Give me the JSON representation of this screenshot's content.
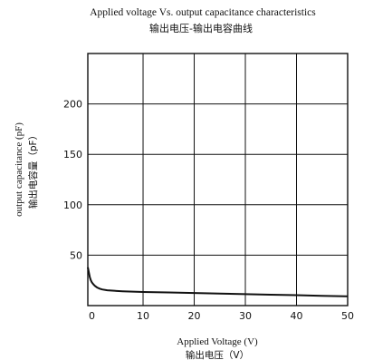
{
  "chart_data": {
    "type": "line",
    "title": "Applied voltage Vs. output capacitance characteristics",
    "subtitle": "输出电压-输出电容曲线",
    "xlabel": "Applied Voltage (V)",
    "xlabel_cn": "输出电压（V）",
    "ylabel": "output capacitance (pF)",
    "ylabel_cn": "输出电容量（pF）",
    "xlim": [
      -0.8,
      50
    ],
    "ylim": [
      0,
      250
    ],
    "x_ticks": [
      0,
      10,
      20,
      30,
      40,
      50
    ],
    "x_tick_labels": [
      "0",
      "10",
      "20",
      "30",
      "40",
      "50"
    ],
    "y_ticks": [
      50,
      100,
      150,
      200
    ],
    "y_tick_labels": [
      "50",
      "100",
      "150",
      "200"
    ],
    "grid": true,
    "series": [
      {
        "x": [
          -0.8,
          -0.6,
          -0.4,
          -0.2,
          0,
          0.3,
          0.6,
          1,
          1.5,
          2,
          3,
          4,
          6,
          8,
          10,
          15,
          20,
          25,
          30,
          35,
          40,
          45,
          50
        ],
        "y": [
          38,
          33,
          28,
          25,
          23,
          21,
          19.5,
          18,
          16.8,
          16,
          15.2,
          14.8,
          14.2,
          13.8,
          13.5,
          13,
          12.5,
          11.9,
          11.3,
          10.8,
          10.3,
          9.7,
          9.2
        ]
      }
    ]
  }
}
